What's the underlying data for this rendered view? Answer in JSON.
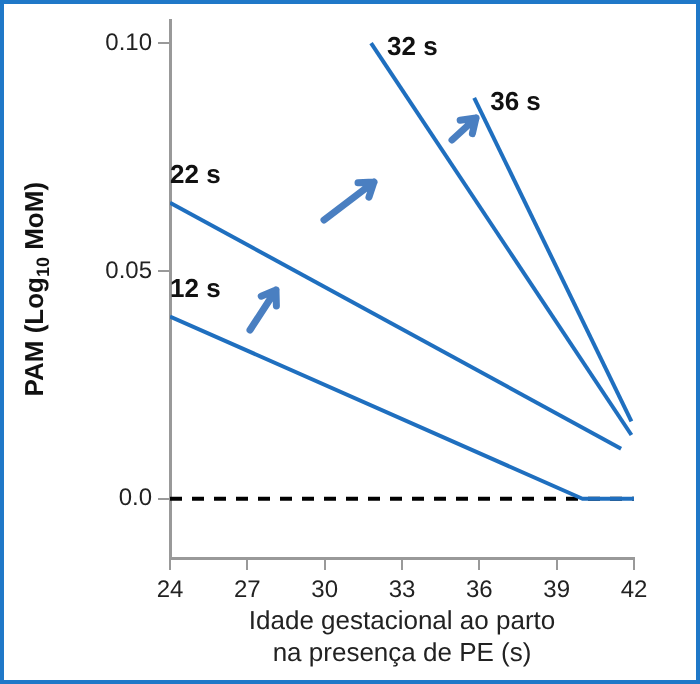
{
  "chart_data": {
    "type": "line",
    "xlabel": "Idade gestacional ao parto\nna presença de PE (s)",
    "ylabel": "PAM (Log$_{10}$ MoM)",
    "xlim": [
      24,
      42
    ],
    "xticks": [
      24,
      27,
      30,
      33,
      36,
      39,
      42
    ],
    "ylim": [
      -0.013,
      0.105
    ],
    "yticks": [
      {
        "value": 0,
        "label": "0.0"
      },
      0.05,
      {
        "value": 0.1,
        "label": "0.10"
      }
    ],
    "grid": false,
    "legend": false,
    "marker": "none",
    "line_style": "solid",
    "series": [
      {
        "name": "12 s",
        "color": "#1f6fbf",
        "x": [
          24,
          40,
          42
        ],
        "values": [
          0.04,
          0,
          0
        ]
      },
      {
        "name": "22 s",
        "color": "#1f6fbf",
        "x": [
          24,
          41.5
        ],
        "values": [
          0.065,
          0.011
        ]
      },
      {
        "name": "32 s",
        "color": "#1f6fbf",
        "x": [
          31.8,
          41.9
        ],
        "values": [
          0.1,
          0.014
        ]
      },
      {
        "name": "36 s",
        "color": "#1f6fbf",
        "x": [
          35.8,
          41.9
        ],
        "values": [
          0.088,
          0.017
        ]
      }
    ],
    "ref_lines": [
      {
        "axis": "y",
        "value": 0,
        "color": "#000000",
        "line_style": "dashed"
      }
    ]
  }
}
